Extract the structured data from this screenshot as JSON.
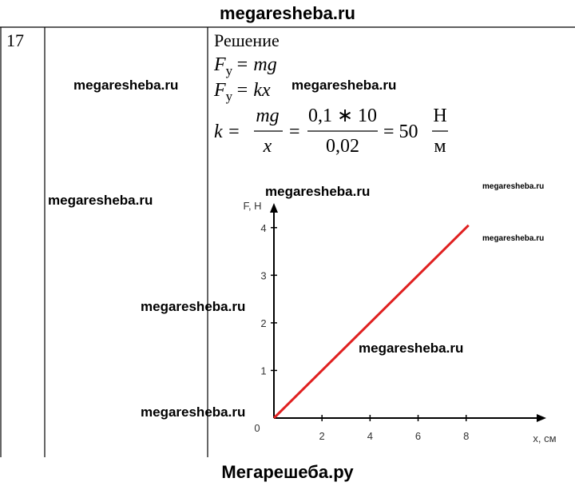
{
  "header": {
    "title": "megaresheba.ru"
  },
  "table": {
    "number": "17",
    "solution": {
      "heading": "Решение",
      "eq1": {
        "symbol": "F",
        "subscript": "у",
        "rhs": "= mg"
      },
      "eq2": {
        "symbol": "F",
        "subscript": "у",
        "rhs": "= kx"
      },
      "eq3": {
        "lhs": "k =",
        "frac1": {
          "num": "mg",
          "den": "x"
        },
        "eq": "=",
        "frac2": {
          "num": "0,1 ∗ 10",
          "den": "0,02"
        },
        "result": "= 50",
        "unit": {
          "num": "Н",
          "den": "м"
        }
      }
    }
  },
  "chart_data": {
    "type": "line",
    "y_label": "F, Н",
    "x_label": "x, см",
    "origin_label": "0",
    "x": [
      0,
      8.1
    ],
    "values": [
      0,
      4.05
    ],
    "color": "#e02020",
    "xlim": [
      0,
      11.2
    ],
    "ylim": [
      0,
      4.5
    ],
    "xticks": [
      2,
      4,
      6,
      8
    ],
    "yticks": [
      1,
      2,
      3,
      4
    ]
  },
  "watermarks": [
    "megaresheba.ru",
    "megaresheba.ru",
    "megaresheba.ru",
    "megaresheba.ru",
    "megaresheba.ru",
    "megaresheba.ru",
    "megaresheba.ru",
    "megaresheba.ru",
    "megaresheba.ru"
  ],
  "footer": {
    "text": "Мегарешеба.ру"
  }
}
